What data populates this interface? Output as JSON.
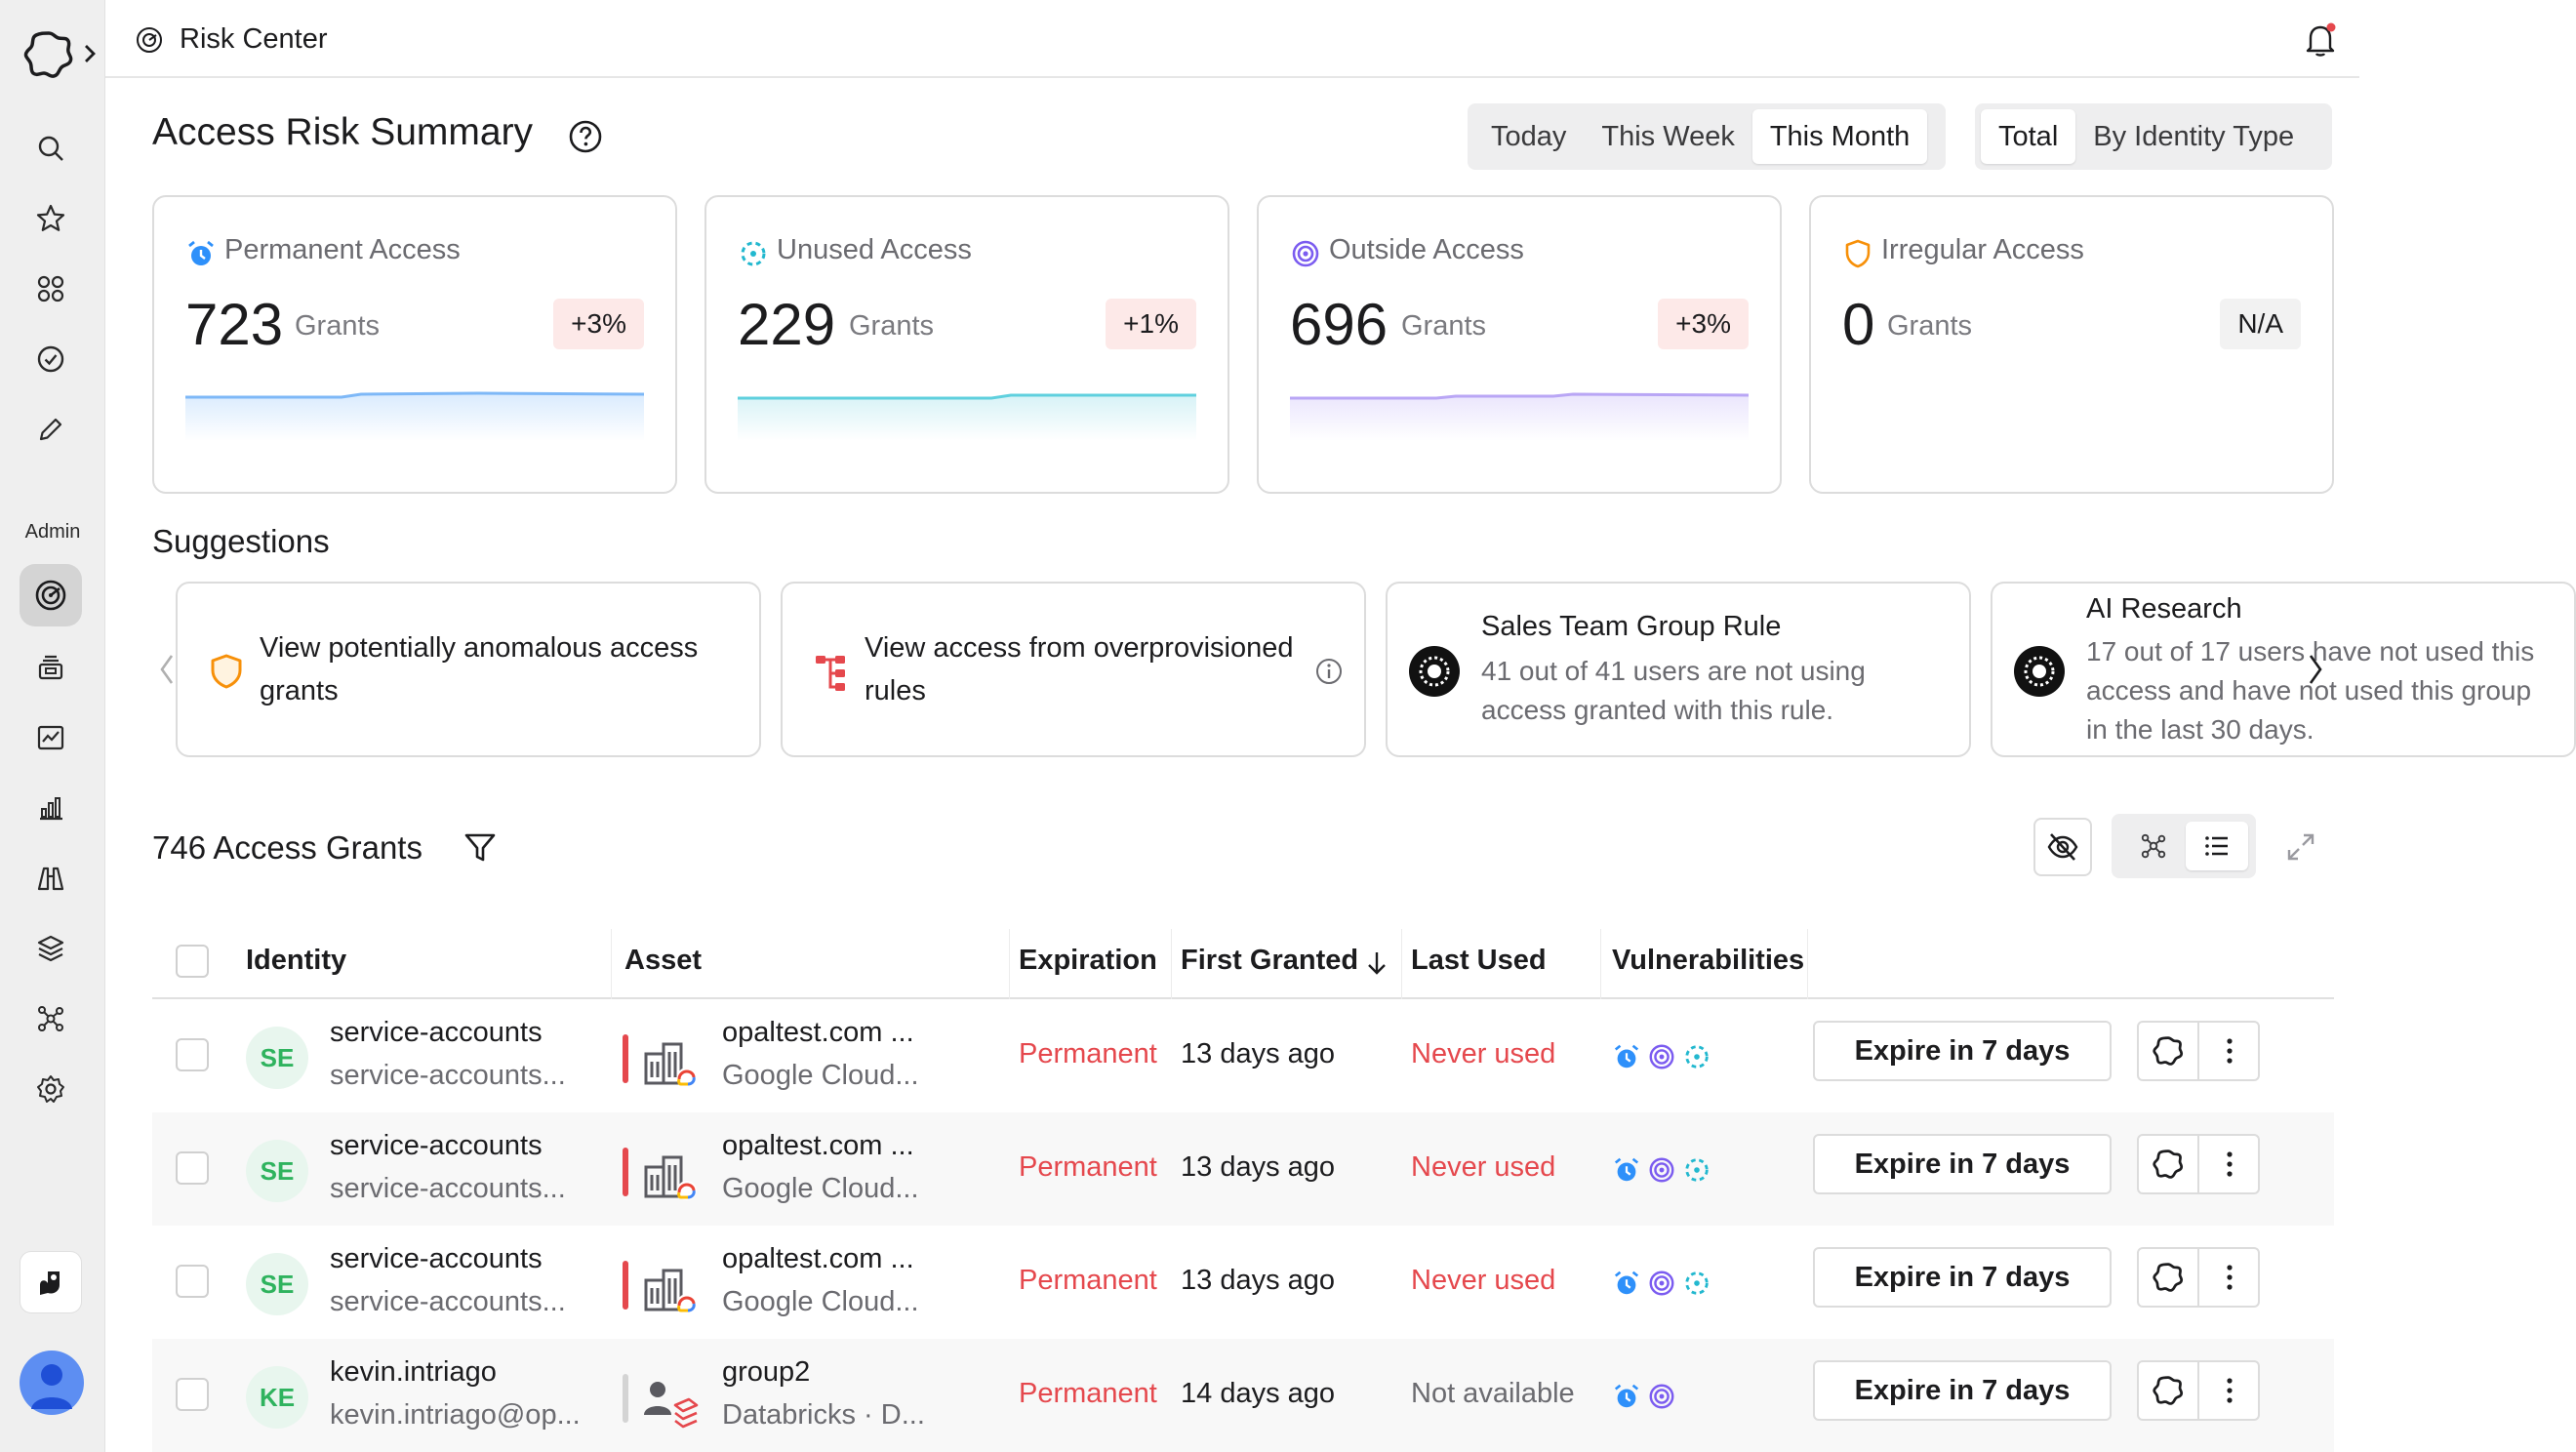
{
  "topbar": {
    "breadcrumb": "Risk Center"
  },
  "rail": {
    "admin_label": "Admin"
  },
  "header": {
    "title": "Access Risk Summary",
    "time_range": [
      "Today",
      "This Week",
      "This Month"
    ],
    "time_range_selected": "This Month",
    "grouping": [
      "Total",
      "By Identity Type"
    ],
    "grouping_selected": "Total"
  },
  "stats": [
    {
      "label": "Permanent Access",
      "value": "723",
      "unit": "Grants",
      "change": "+3%",
      "icon": "alarm-clock-icon",
      "color": "#2e90fa"
    },
    {
      "label": "Unused Access",
      "value": "229",
      "unit": "Grants",
      "change": "+1%",
      "icon": "dashed-circle-icon",
      "color": "#22b8cf"
    },
    {
      "label": "Outside Access",
      "value": "696",
      "unit": "Grants",
      "change": "+3%",
      "icon": "target-icon",
      "color": "#7b5cf0"
    },
    {
      "label": "Irregular Access",
      "value": "0",
      "unit": "Grants",
      "change": "N/A",
      "icon": "shield-icon",
      "color": "#f79009"
    }
  ],
  "suggestions": {
    "title": "Suggestions",
    "items": [
      {
        "text": "View potentially anomalous access grants",
        "icon": "shield-icon"
      },
      {
        "text": "View access from overprovisioned rules",
        "icon": "tree-icon"
      },
      {
        "title": "Sales Team Group Rule",
        "subtitle": "41 out of 41 users are not using access granted with this rule.",
        "icon": "group-rule-icon"
      },
      {
        "title": "AI Research",
        "subtitle": "17 out of 17 users have not used this access and have not used this group in the last 30 days.",
        "icon": "group-rule-icon"
      }
    ]
  },
  "grants": {
    "title": "746 Access Grants",
    "columns": {
      "identity": "Identity",
      "asset": "Asset",
      "expiration": "Expiration",
      "first_granted": "First Granted",
      "last_used": "Last Used",
      "vulnerabilities": "Vulnerabilities"
    },
    "rows": [
      {
        "initials": "SE",
        "identity": "service-accounts",
        "identity_sub": "service-accounts...",
        "asset": "opaltest.com ...",
        "asset_sub": "Google Cloud...",
        "expiration": "Permanent",
        "first_granted": "13 days ago",
        "last_used": "Never used",
        "action": "Expire in 7 days"
      },
      {
        "initials": "SE",
        "identity": "service-accounts",
        "identity_sub": "service-accounts...",
        "asset": "opaltest.com ...",
        "asset_sub": "Google Cloud...",
        "expiration": "Permanent",
        "first_granted": "13 days ago",
        "last_used": "Never used",
        "action": "Expire in 7 days"
      },
      {
        "initials": "SE",
        "identity": "service-accounts",
        "identity_sub": "service-accounts...",
        "asset": "opaltest.com ...",
        "asset_sub": "Google Cloud...",
        "expiration": "Permanent",
        "first_granted": "13 days ago",
        "last_used": "Never used",
        "action": "Expire in 7 days"
      },
      {
        "initials": "KE",
        "identity": "kevin.intriago",
        "identity_sub": "kevin.intriago@op...",
        "asset": "group2",
        "asset_sub": "Databricks · D...",
        "expiration": "Permanent",
        "first_granted": "14 days ago",
        "last_used": "Not available",
        "action": "Expire in 7 days"
      }
    ]
  }
}
